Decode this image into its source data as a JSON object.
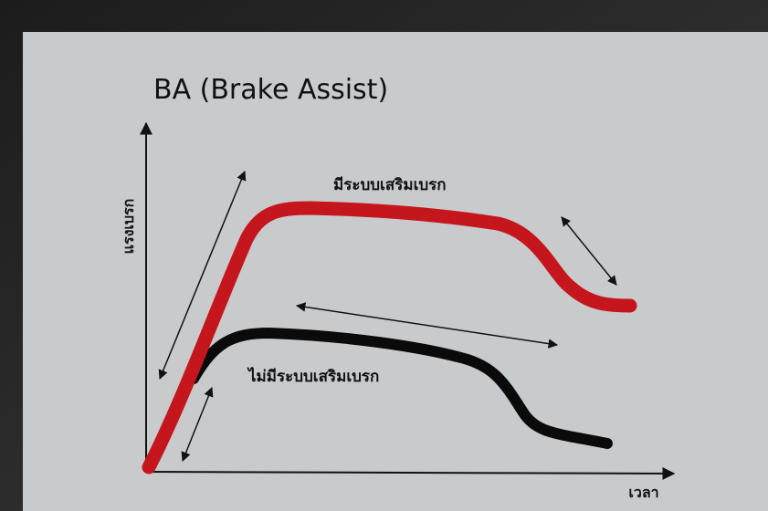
{
  "title": "BA (Brake Assist)",
  "y_axis_label": "แรงเบรก",
  "x_axis_label": "เวลา",
  "curves": [
    {
      "label": "มีระบบเสริมเบรก"
    },
    {
      "label": "ไม่มีระบบเสริมเบรก"
    }
  ]
}
